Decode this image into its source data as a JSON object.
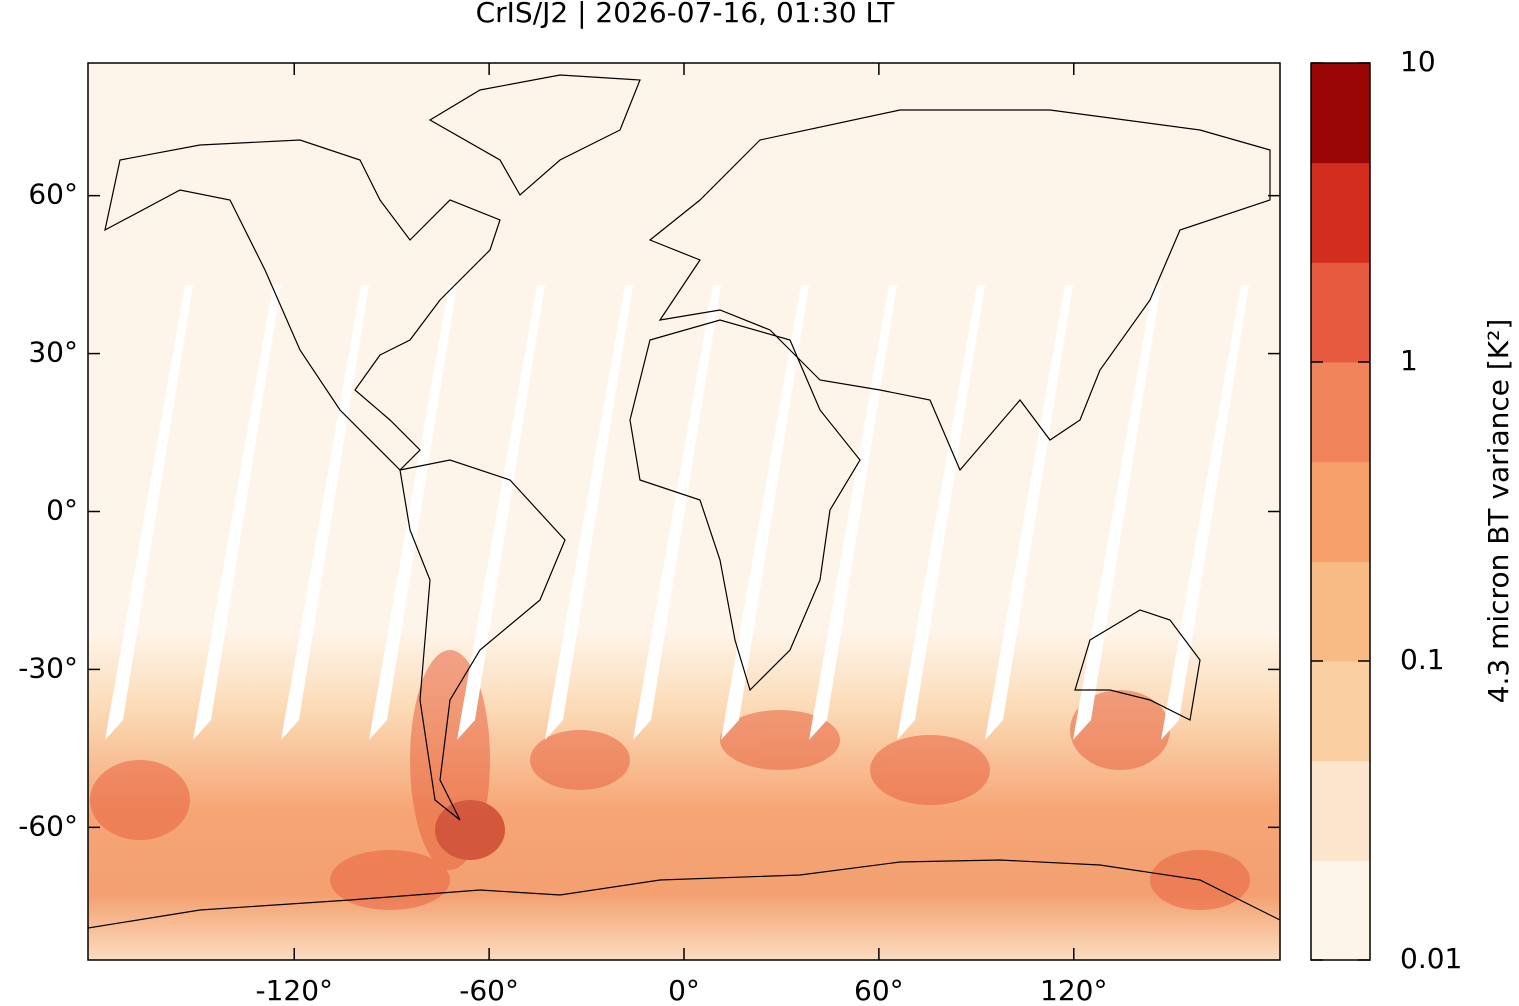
{
  "chart_data": {
    "type": "map",
    "title": "CrIS/J2 | 2026-07-16, 01:30 LT",
    "xlim": [
      -183.5,
      183.5
    ],
    "ylim": [
      -85.2,
      85.2
    ],
    "xticks": [
      {
        "value": -120,
        "label": "-120°"
      },
      {
        "value": -60,
        "label": "-60°"
      },
      {
        "value": 0,
        "label": "0°"
      },
      {
        "value": 60,
        "label": "60°"
      },
      {
        "value": 120,
        "label": "120°"
      }
    ],
    "yticks": [
      {
        "value": 60,
        "label": "60°"
      },
      {
        "value": 30,
        "label": "30°"
      },
      {
        "value": 0,
        "label": "0°"
      },
      {
        "value": -30,
        "label": "-30°"
      },
      {
        "value": -60,
        "label": "-60°"
      }
    ],
    "colorbar": {
      "label": "4.3 micron BT variance [K²]",
      "log": true,
      "lim": [
        0.01,
        10
      ],
      "ticks": [
        0.01,
        0.1,
        1,
        10
      ],
      "colors": [
        "#fef5ea",
        "#fce5cc",
        "#fad0a3",
        "#f9bb86",
        "#f6a06b",
        "#f1845a",
        "#e65b40",
        "#d22d1e",
        "#9a0606"
      ]
    }
  }
}
